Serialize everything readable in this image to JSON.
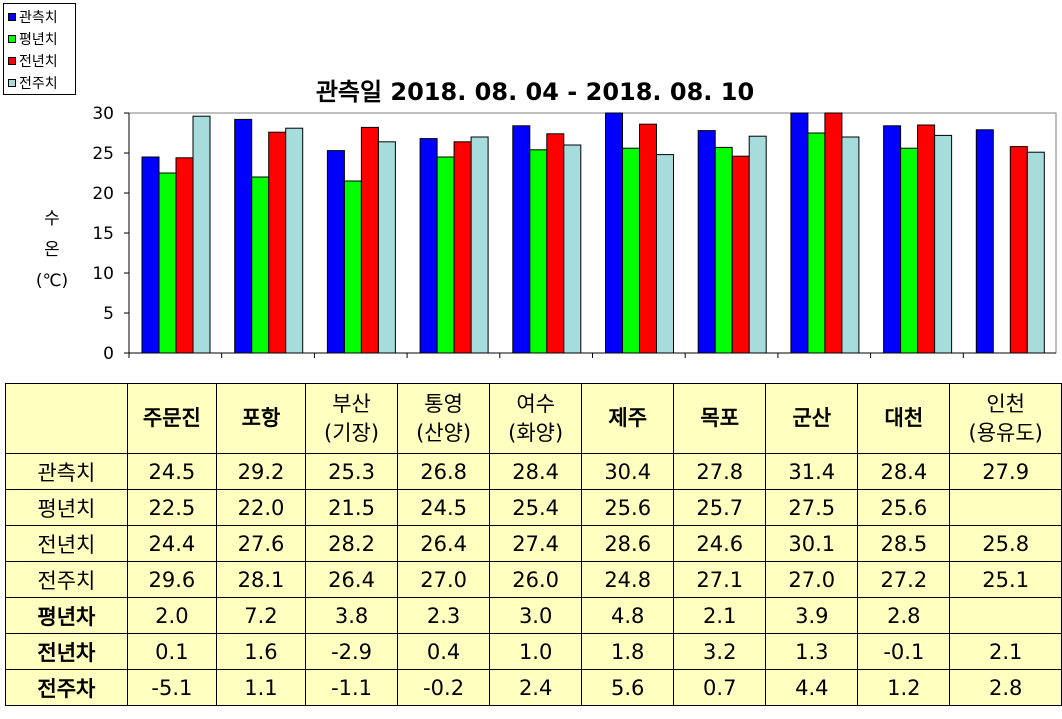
{
  "chart_data": {
    "type": "bar",
    "title": "관측일 2018. 08. 04 - 2018. 08. 10",
    "ylabel": "수온 (℃)",
    "ylabel_lines": [
      "수",
      "온",
      "(℃)"
    ],
    "xlabel": "",
    "ylim": [
      0,
      30
    ],
    "yticks": [
      "0",
      "5",
      "10",
      "15",
      "20",
      "25",
      "30"
    ],
    "grid": false,
    "legend_position": "top-left",
    "categories": [
      "주문진",
      "포항",
      "부산(기장)",
      "통영(산양)",
      "여수(화양)",
      "제주",
      "목포",
      "군산",
      "대천",
      "인천(용유도)"
    ],
    "series": [
      {
        "name": "관측치",
        "color": "#0000ff",
        "values": [
          24.5,
          29.2,
          25.3,
          26.8,
          28.4,
          30.4,
          27.8,
          31.4,
          28.4,
          27.9
        ]
      },
      {
        "name": "평년치",
        "color": "#00ff00",
        "values": [
          22.5,
          22.0,
          21.5,
          24.5,
          25.4,
          25.6,
          25.7,
          27.5,
          25.6,
          null
        ]
      },
      {
        "name": "전년치",
        "color": "#ff0000",
        "values": [
          24.4,
          27.6,
          28.2,
          26.4,
          27.4,
          28.6,
          24.6,
          30.1,
          28.5,
          25.8
        ]
      },
      {
        "name": "전주치",
        "color": "#a6dcdc",
        "values": [
          29.6,
          28.1,
          26.4,
          27.0,
          26.0,
          24.8,
          27.1,
          27.0,
          27.2,
          25.1
        ]
      }
    ]
  },
  "table": {
    "headers": [
      {
        "lines": [
          "주문진"
        ]
      },
      {
        "lines": [
          "포항"
        ]
      },
      {
        "lines": [
          "부산",
          "(기장)"
        ]
      },
      {
        "lines": [
          "통영",
          "(산양)"
        ]
      },
      {
        "lines": [
          "여수",
          "(화양)"
        ]
      },
      {
        "lines": [
          "제주"
        ]
      },
      {
        "lines": [
          "목포"
        ]
      },
      {
        "lines": [
          "군산"
        ]
      },
      {
        "lines": [
          "대천"
        ]
      },
      {
        "lines": [
          "인천",
          "(용유도)"
        ]
      }
    ],
    "rows": [
      {
        "label": "관측치",
        "bold": false,
        "cells": [
          "24.5",
          "29.2",
          "25.3",
          "26.8",
          "28.4",
          "30.4",
          "27.8",
          "31.4",
          "28.4",
          "27.9"
        ]
      },
      {
        "label": "평년치",
        "bold": false,
        "cells": [
          "22.5",
          "22.0",
          "21.5",
          "24.5",
          "25.4",
          "25.6",
          "25.7",
          "27.5",
          "25.6",
          ""
        ]
      },
      {
        "label": "전년치",
        "bold": false,
        "cells": [
          "24.4",
          "27.6",
          "28.2",
          "26.4",
          "27.4",
          "28.6",
          "24.6",
          "30.1",
          "28.5",
          "25.8"
        ]
      },
      {
        "label": "전주치",
        "bold": false,
        "cells": [
          "29.6",
          "28.1",
          "26.4",
          "27.0",
          "26.0",
          "24.8",
          "27.1",
          "27.0",
          "27.2",
          "25.1"
        ]
      },
      {
        "label": "평년차",
        "bold": true,
        "cells": [
          "2.0",
          "7.2",
          "3.8",
          "2.3",
          "3.0",
          "4.8",
          "2.1",
          "3.9",
          "2.8",
          ""
        ]
      },
      {
        "label": "전년차",
        "bold": true,
        "cells": [
          "0.1",
          "1.6",
          "-2.9",
          "0.4",
          "1.0",
          "1.8",
          "3.2",
          "1.3",
          "-0.1",
          "2.1"
        ]
      },
      {
        "label": "전주차",
        "bold": true,
        "cells": [
          "-5.1",
          "1.1",
          "-1.1",
          "-0.2",
          "2.4",
          "5.6",
          "0.7",
          "4.4",
          "1.2",
          "2.8"
        ]
      }
    ]
  }
}
